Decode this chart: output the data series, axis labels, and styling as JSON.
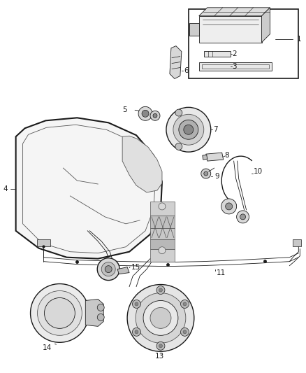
{
  "bg_color": "#ffffff",
  "lc": "#1a1a1a",
  "lc_gray": "#555555",
  "fig_width": 4.38,
  "fig_height": 5.33,
  "dpi": 100
}
